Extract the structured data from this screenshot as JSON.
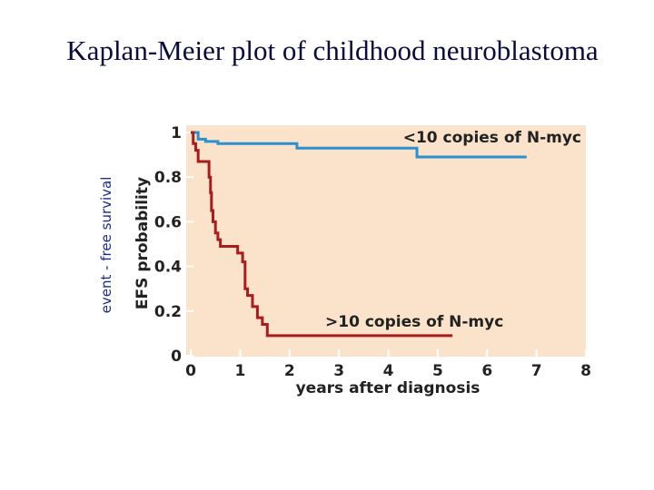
{
  "chart_data": {
    "type": "line",
    "step": "post",
    "title": "Kaplan-Meier plot of childhood neuroblastoma",
    "annotation": "event - free survival",
    "xlabel": "years after diagnosis",
    "ylabel": "EFS probability",
    "xlim": [
      0,
      8
    ],
    "xticks": [
      0,
      1,
      2,
      3,
      4,
      5,
      6,
      7,
      8
    ],
    "ylim": [
      0,
      1
    ],
    "yticks": [
      0,
      0.2,
      0.4,
      0.6,
      0.8,
      1
    ],
    "series": [
      {
        "name": "<10 copies of N-myc",
        "color": "#2b8fd0",
        "x": [
          0,
          0.15,
          0.3,
          0.55,
          2.15,
          4.58,
          6.8
        ],
        "values": [
          1,
          0.97,
          0.96,
          0.95,
          0.93,
          0.89,
          0.89
        ]
      },
      {
        "name": ">10 copies of N-myc",
        "color": "#a81c1c",
        "x": [
          0,
          0.05,
          0.1,
          0.15,
          0.37,
          0.4,
          0.42,
          0.45,
          0.5,
          0.55,
          0.6,
          0.75,
          0.95,
          1.05,
          1.1,
          1.15,
          1.25,
          1.35,
          1.45,
          1.55,
          5.3
        ],
        "values": [
          1,
          0.95,
          0.92,
          0.87,
          0.8,
          0.73,
          0.65,
          0.6,
          0.55,
          0.52,
          0.49,
          0.49,
          0.46,
          0.42,
          0.3,
          0.27,
          0.22,
          0.17,
          0.14,
          0.09,
          0.09
        ]
      }
    ]
  }
}
